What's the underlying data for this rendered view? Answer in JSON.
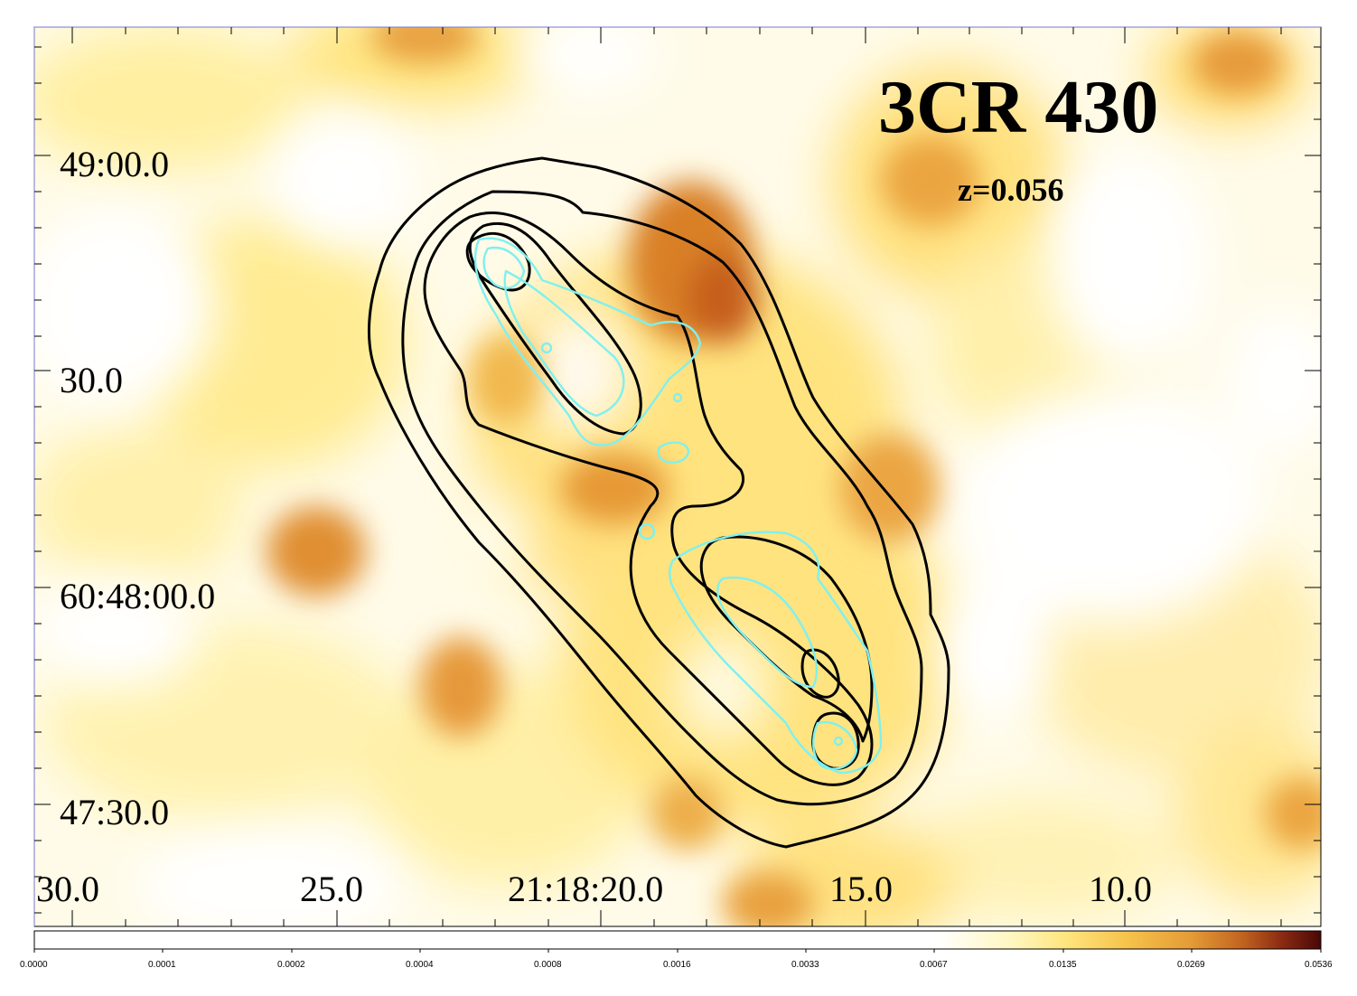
{
  "title": "3CR 430",
  "redshift": "z=0.056",
  "dec_labels": [
    "49:00.0",
    "30.0",
    "60:48:00.0",
    "47:30.0"
  ],
  "ra_labels": [
    "30.0",
    "25.0",
    "21:18:20.0",
    "15.0",
    "10.0"
  ],
  "colorbar": {
    "ticks": [
      "0.0000",
      "0.0001",
      "0.0002",
      "0.0004",
      "0.0008",
      "0.0016",
      "0.0033",
      "0.0067",
      "0.0135",
      "0.0269",
      "0.0536"
    ],
    "colors": [
      "#ffffff",
      "#fff6c8",
      "#ffe27a",
      "#f8c44a",
      "#eba33b",
      "#d27a2a",
      "#a5451c",
      "#5a0f08"
    ]
  }
}
